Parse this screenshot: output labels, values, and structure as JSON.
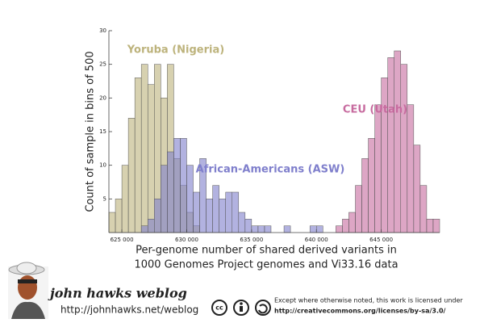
{
  "chart_data": {
    "type": "histogram",
    "y_label": "Count of sample in bins of 500",
    "x_label": [
      "Per-genome number of shared derived variants in",
      "1000 Genomes Project genomes and Vi33.16 data"
    ],
    "bins": [
      624000,
      624500,
      625000,
      625500,
      626000,
      626500,
      627000,
      627500,
      628000,
      628500,
      629000,
      629500,
      630000,
      630500,
      631000,
      631500,
      632000,
      632500,
      633000,
      633500,
      634000,
      634500,
      635000,
      635500,
      636000,
      636500,
      637000,
      637500,
      638000,
      638500,
      639000,
      639500,
      640000,
      640500,
      641000,
      641500,
      642000,
      642500,
      643000,
      643500,
      644000,
      644500,
      645000,
      645500,
      646000,
      646500,
      647000,
      647500,
      648000,
      648500,
      649000,
      649500
    ],
    "series": [
      {
        "name": "Yoruba (Nigeria)",
        "color": "#bdb37c",
        "values": [
          3,
          5,
          10,
          17,
          23,
          25,
          22,
          25,
          20,
          25,
          11,
          7,
          3,
          1,
          0,
          0,
          0,
          0,
          0,
          0,
          0,
          0,
          0,
          0,
          0,
          0,
          0,
          0,
          0,
          0,
          0,
          0,
          0,
          0,
          0,
          0,
          0,
          0,
          0,
          0,
          0,
          0,
          0,
          0,
          0,
          0,
          0,
          0,
          0,
          0,
          0
        ]
      },
      {
        "name": "African-Americans (ASW)",
        "color": "#7f7fcc",
        "values": [
          0,
          0,
          0,
          0,
          0,
          1,
          2,
          5,
          10,
          12,
          14,
          14,
          10,
          6,
          11,
          5,
          7,
          5,
          6,
          6,
          3,
          2,
          1,
          1,
          1,
          0,
          0,
          1,
          0,
          0,
          0,
          1,
          1,
          0,
          0,
          0,
          0,
          0,
          0,
          0,
          0,
          0,
          0,
          0,
          0,
          0,
          0,
          0,
          0,
          0,
          0
        ]
      },
      {
        "name": "CEU (Utah)",
        "color": "#c76b9f",
        "values": [
          0,
          0,
          0,
          0,
          0,
          0,
          0,
          0,
          0,
          0,
          0,
          0,
          0,
          0,
          0,
          0,
          0,
          0,
          0,
          0,
          0,
          0,
          0,
          0,
          0,
          0,
          0,
          0,
          0,
          0,
          0,
          0,
          0,
          0,
          0,
          1,
          2,
          3,
          7,
          11,
          14,
          19,
          23,
          26,
          27,
          25,
          19,
          13,
          7,
          2,
          2
        ]
      }
    ],
    "xlim": [
      624000,
      649500
    ],
    "xticks": [
      {
        "value": 625000,
        "label": "625 000"
      },
      {
        "value": 630000,
        "label": "630 000"
      },
      {
        "value": 635000,
        "label": "635 000"
      },
      {
        "value": 640000,
        "label": "640 000"
      },
      {
        "value": 645000,
        "label": "645 000"
      }
    ],
    "ylim": [
      0,
      30
    ],
    "yticks": [
      5,
      10,
      15,
      20,
      25,
      30
    ]
  },
  "footer": {
    "blog": "john hawks weblog",
    "url": "http://johnhawks.net/weblog",
    "license": [
      "Except where otherwise noted, this work is licensed under",
      "http://creativecommons.org/licenses/by-sa/3.0/"
    ]
  }
}
